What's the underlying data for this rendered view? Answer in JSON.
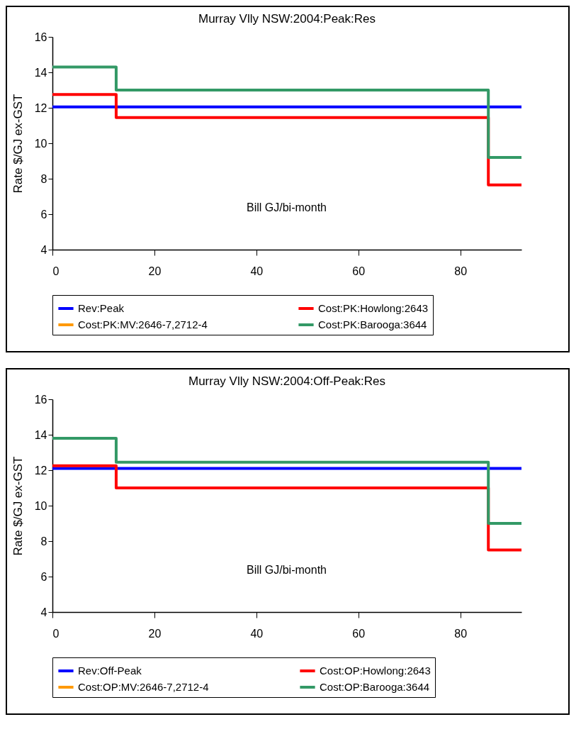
{
  "chart_data": [
    {
      "type": "step",
      "title": "Murray Vlly NSW:2004:Peak:Res",
      "xlabel": "Bill GJ/bi-month",
      "ylabel": "Rate $/GJ ex-GST",
      "xlim": [
        0,
        92
      ],
      "xticks": [
        0,
        20,
        40,
        60,
        80
      ],
      "ylim": [
        4,
        16
      ],
      "yticks": [
        4,
        6,
        8,
        10,
        12,
        14,
        16
      ],
      "grid": false,
      "legend": "bottom",
      "series": [
        {
          "name": "Rev:Peak",
          "color": "#0000ff",
          "x": [
            0,
            92
          ],
          "values": [
            12.05,
            12.05
          ]
        },
        {
          "name": "Cost:PK:Howlong:2643",
          "color": "#ff0000",
          "x": [
            0,
            12.5,
            85.5,
            92
          ],
          "values": [
            12.75,
            11.45,
            7.65,
            7.65
          ]
        },
        {
          "name": "Cost:PK:MV:2646-7,2712-4",
          "color": "#ff9900"
        },
        {
          "name": "Cost:PK:Barooga:3644",
          "color": "#339966",
          "x": [
            0,
            12.5,
            85.5,
            92
          ],
          "values": [
            14.3,
            13.0,
            9.2,
            9.2
          ]
        }
      ]
    },
    {
      "type": "step",
      "title": "Murray Vlly NSW:2004:Off-Peak:Res",
      "xlabel": "Bill GJ/bi-month",
      "ylabel": "Rate $/GJ ex-GST",
      "xlim": [
        0,
        92
      ],
      "xticks": [
        0,
        20,
        40,
        60,
        80
      ],
      "ylim": [
        4,
        16
      ],
      "yticks": [
        4,
        6,
        8,
        10,
        12,
        14,
        16
      ],
      "grid": false,
      "legend": "bottom",
      "series": [
        {
          "name": "Rev:Off-Peak",
          "color": "#0000ff",
          "x": [
            0,
            92
          ],
          "values": [
            12.1,
            12.1
          ]
        },
        {
          "name": "Cost:OP:Howlong:2643",
          "color": "#ff0000",
          "x": [
            0,
            12.5,
            85.5,
            92
          ],
          "values": [
            12.25,
            11.0,
            7.5,
            7.5
          ]
        },
        {
          "name": "Cost:OP:MV:2646-7,2712-4",
          "color": "#ff9900"
        },
        {
          "name": "Cost:OP:Barooga:3644",
          "color": "#339966",
          "x": [
            0,
            12.5,
            85.5,
            92
          ],
          "values": [
            13.8,
            12.45,
            9.0,
            9.0
          ]
        }
      ]
    }
  ]
}
